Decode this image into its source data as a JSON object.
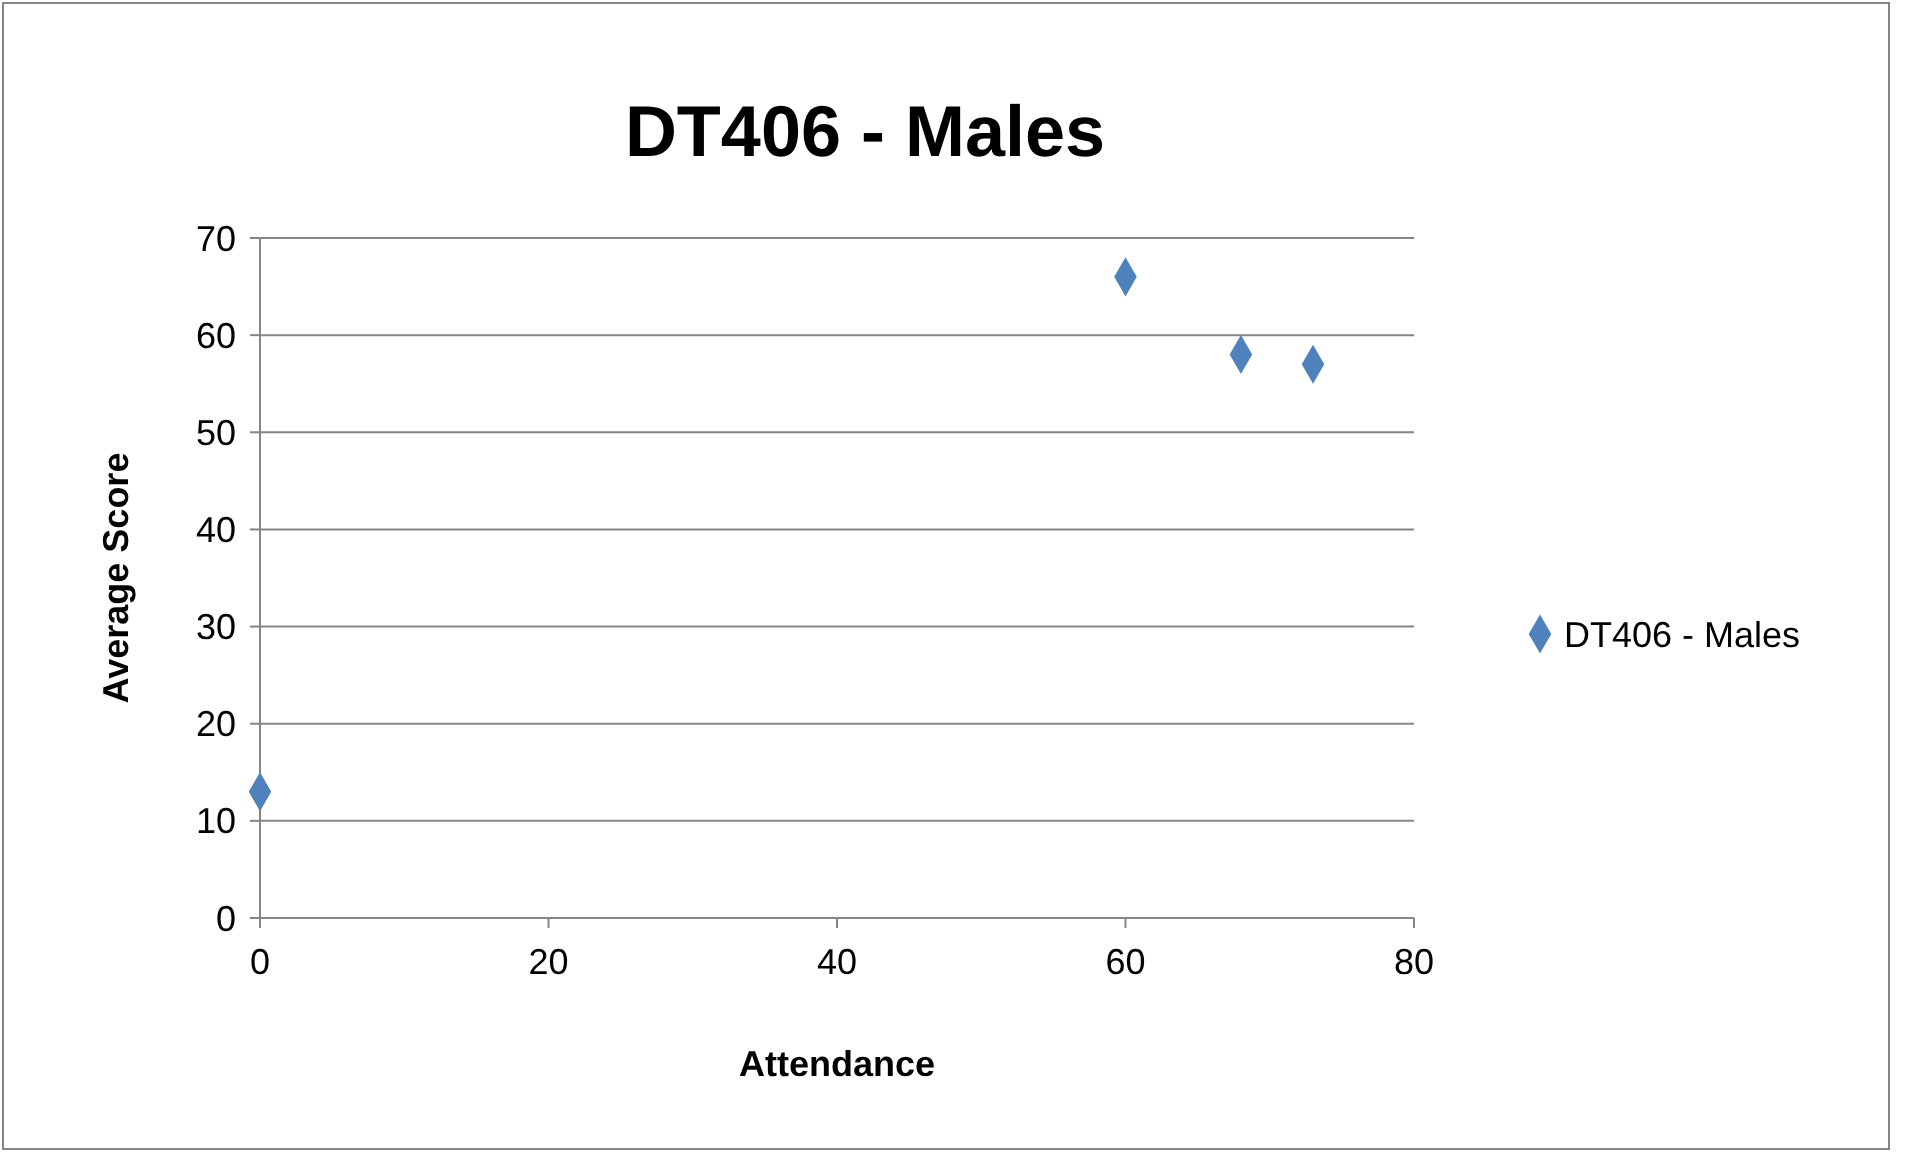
{
  "chart_data": {
    "type": "scatter",
    "title": "DT406 - Males",
    "xlabel": "Attendance",
    "ylabel": "Average Score",
    "x": [
      0,
      60,
      68,
      73
    ],
    "series": [
      {
        "name": "DT406 - Males",
        "color": "#4f81bd",
        "values": [
          13,
          66,
          58,
          57
        ]
      }
    ],
    "xlim": [
      0,
      80
    ],
    "xticks": [
      0,
      20,
      40,
      60,
      80
    ],
    "ylim": [
      0,
      70
    ],
    "yticks": [
      0,
      10,
      20,
      30,
      40,
      50,
      60,
      70
    ],
    "grid": "y",
    "legend": "right",
    "marker": "diamond"
  }
}
